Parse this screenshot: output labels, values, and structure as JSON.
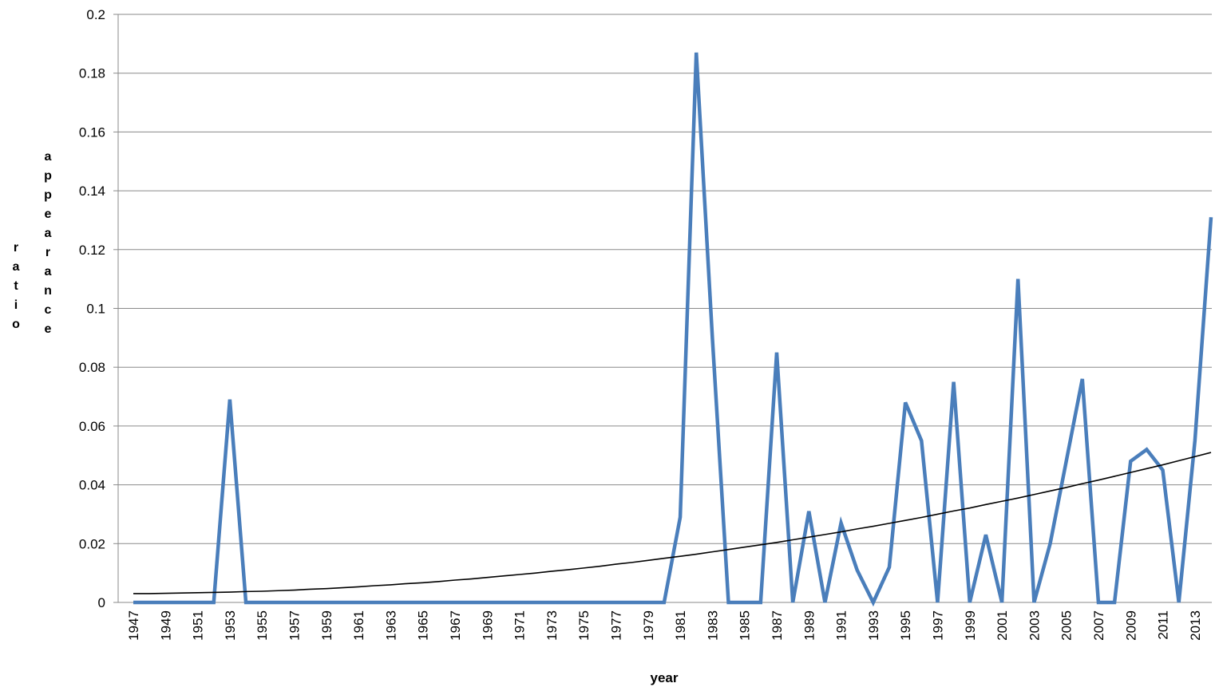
{
  "chart_data": {
    "type": "line",
    "xlabel": "year",
    "ylabel": [
      "ratio",
      "appearance"
    ],
    "categories": [
      "1947",
      null,
      "1949",
      null,
      "1951",
      null,
      "1953",
      null,
      "1955",
      null,
      "1957",
      null,
      "1959",
      null,
      "1961",
      null,
      "1963",
      null,
      "1965",
      null,
      "1967",
      null,
      "1969",
      null,
      "1971",
      null,
      "1973",
      null,
      "1975",
      null,
      "1977",
      null,
      "1979",
      null,
      "1981",
      null,
      "1983",
      null,
      "1985",
      null,
      "1987",
      null,
      "1989",
      null,
      "1991",
      null,
      "1993",
      null,
      "1995",
      null,
      "1997",
      null,
      "1999",
      null,
      "2001",
      null,
      "2003",
      null,
      "2005",
      null,
      "2007",
      null,
      "2009",
      null,
      "2011",
      null,
      "2013",
      null
    ],
    "values": [
      0,
      0,
      0,
      0,
      0,
      0,
      0.069,
      0,
      0,
      0,
      0,
      0,
      0,
      0,
      0,
      0,
      0,
      0,
      0,
      0,
      0,
      0,
      0,
      0,
      0,
      0,
      0,
      0,
      0,
      0,
      0,
      0,
      0,
      0,
      0.029,
      0.187,
      0.09,
      0,
      0,
      0,
      0.085,
      0,
      0.031,
      0,
      0.027,
      0.011,
      0,
      0.012,
      0.068,
      0.055,
      0,
      0.075,
      0,
      0.023,
      0,
      0.11,
      0,
      0.02,
      0.048,
      0.076,
      0,
      0,
      0.048,
      0.052,
      0.045,
      0,
      0.055,
      0.131
    ],
    "color": "#4a7ebb",
    "trendline": {
      "color": "#000000",
      "values": [
        0.003,
        0.003,
        0.0031,
        0.0032,
        0.0033,
        0.0034,
        0.0035,
        0.0037,
        0.0038,
        0.004,
        0.0042,
        0.0045,
        0.0047,
        0.005,
        0.0053,
        0.0057,
        0.006,
        0.0064,
        0.0067,
        0.0071,
        0.0076,
        0.008,
        0.0085,
        0.009,
        0.0095,
        0.01,
        0.0106,
        0.0111,
        0.0117,
        0.0123,
        0.013,
        0.0136,
        0.0143,
        0.015,
        0.0157,
        0.0164,
        0.0172,
        0.018,
        0.0188,
        0.0196,
        0.0204,
        0.0213,
        0.0222,
        0.0231,
        0.024,
        0.025,
        0.0259,
        0.0269,
        0.0279,
        0.0289,
        0.03,
        0.0311,
        0.0321,
        0.0333,
        0.0344,
        0.0355,
        0.0367,
        0.0379,
        0.0391,
        0.0404,
        0.0416,
        0.0429,
        0.0442,
        0.0455,
        0.0468,
        0.0482,
        0.0496,
        0.051
      ]
    },
    "ylim": [
      0,
      0.2
    ],
    "yticks": [
      0,
      0.02,
      0.04,
      0.06,
      0.08,
      0.1,
      0.12,
      0.14,
      0.16,
      0.18,
      0.2
    ],
    "grid": true
  }
}
